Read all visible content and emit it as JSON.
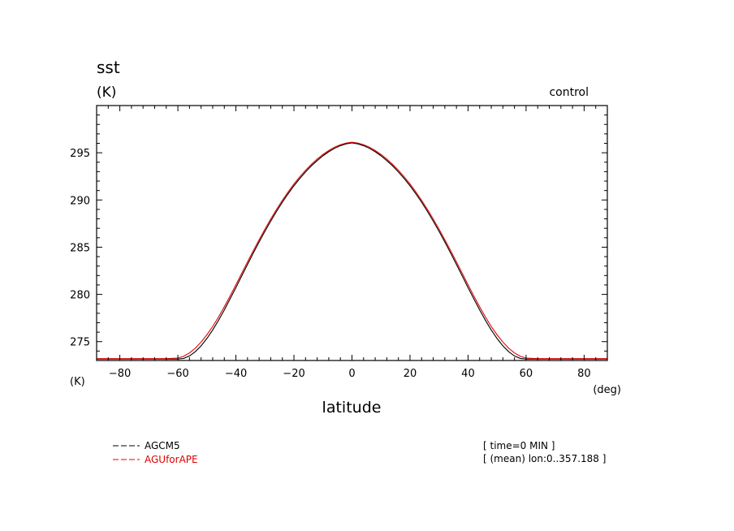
{
  "chart_data": {
    "type": "line",
    "title": "sst",
    "unit_label": "(K)",
    "corner_label": "control",
    "xlabel": "latitude",
    "xunit": "(deg)",
    "y_axis_unit_bottom": "(K)",
    "xlim": [
      -88,
      88
    ],
    "ylim": [
      273,
      300
    ],
    "x_ticks": [
      -80,
      -60,
      -40,
      -20,
      0,
      20,
      40,
      60,
      80
    ],
    "y_ticks": [
      275,
      280,
      285,
      290,
      295
    ],
    "x_minor_step": 4,
    "y_minor_step": 1,
    "grid": false,
    "x": [
      -88,
      -84,
      -80,
      -76,
      -72,
      -68,
      -64,
      -60,
      -58,
      -56,
      -54,
      -52,
      -50,
      -48,
      -46,
      -44,
      -42,
      -40,
      -38,
      -36,
      -34,
      -32,
      -30,
      -28,
      -26,
      -24,
      -22,
      -20,
      -18,
      -16,
      -14,
      -12,
      -10,
      -8,
      -6,
      -4,
      -2,
      0,
      2,
      4,
      6,
      8,
      10,
      12,
      14,
      16,
      18,
      20,
      22,
      24,
      26,
      28,
      30,
      32,
      34,
      36,
      38,
      40,
      42,
      44,
      46,
      48,
      50,
      52,
      54,
      56,
      58,
      60,
      64,
      68,
      72,
      76,
      80,
      84,
      88
    ],
    "series": [
      {
        "name": "AGCM5",
        "color": "#000000",
        "dash": "dashed",
        "values": [
          273.15,
          273.15,
          273.15,
          273.15,
          273.15,
          273.15,
          273.15,
          273.15,
          273.22,
          273.48,
          273.93,
          274.55,
          275.33,
          276.23,
          277.25,
          278.35,
          279.52,
          280.72,
          281.95,
          283.17,
          284.38,
          285.55,
          286.68,
          287.76,
          288.79,
          289.76,
          290.66,
          291.5,
          292.27,
          292.97,
          293.61,
          294.17,
          294.68,
          295.11,
          295.47,
          295.75,
          295.94,
          296.05,
          295.94,
          295.75,
          295.47,
          295.11,
          294.68,
          294.17,
          293.61,
          292.97,
          292.27,
          291.5,
          290.66,
          289.76,
          288.79,
          287.76,
          286.68,
          285.55,
          284.38,
          283.17,
          281.95,
          280.72,
          279.52,
          278.35,
          277.25,
          276.23,
          275.33,
          274.55,
          273.93,
          273.48,
          273.22,
          273.15,
          273.15,
          273.15,
          273.15,
          273.15,
          273.15,
          273.15,
          273.15
        ]
      },
      {
        "name": "AGUforAPE",
        "color": "#e00000",
        "dash": "dashed",
        "values": [
          273.2,
          273.2,
          273.2,
          273.2,
          273.2,
          273.2,
          273.2,
          273.25,
          273.45,
          273.8,
          274.3,
          274.95,
          275.72,
          276.6,
          277.6,
          278.68,
          279.83,
          281.02,
          282.23,
          283.44,
          284.63,
          285.79,
          286.91,
          287.98,
          289.0,
          289.96,
          290.86,
          291.69,
          292.45,
          293.14,
          293.77,
          294.33,
          294.82,
          295.24,
          295.59,
          295.85,
          296.03,
          296.12,
          296.03,
          295.85,
          295.59,
          295.24,
          294.82,
          294.33,
          293.77,
          293.14,
          292.45,
          291.69,
          290.86,
          289.96,
          289.0,
          287.98,
          286.91,
          285.79,
          284.63,
          283.44,
          282.23,
          281.02,
          279.83,
          278.68,
          277.6,
          276.6,
          275.72,
          274.95,
          274.3,
          273.8,
          273.45,
          273.25,
          273.2,
          273.2,
          273.2,
          273.2,
          273.2,
          273.2,
          273.2
        ]
      }
    ],
    "legend_placement": "bottom-left",
    "notes": [
      "[ time=0 MIN ]",
      "[ (mean) lon:0..357.188 ]"
    ]
  }
}
